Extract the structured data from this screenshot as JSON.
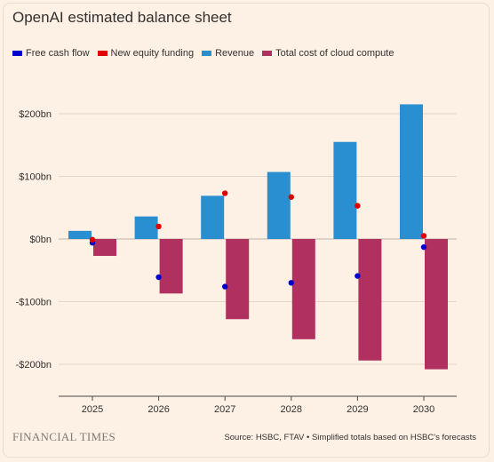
{
  "header": {
    "title": "OpenAI estimated balance sheet"
  },
  "footer": {
    "logo": "FINANCIAL TIMES",
    "source": "Source: HSBC, FTAV • Simplified totals based on HSBC's forecasts"
  },
  "chart_data": {
    "type": "bar",
    "title": "OpenAI estimated balance sheet",
    "categories": [
      "2025",
      "2026",
      "2027",
      "2028",
      "2029",
      "2030"
    ],
    "ylim": [
      -250,
      250
    ],
    "yticks": [
      200,
      100,
      0,
      -100,
      -200
    ],
    "ytick_labels": [
      "$200bn",
      "$100bn",
      "$0bn",
      "-$100bn",
      "-$200bn"
    ],
    "grid": true,
    "legend_position": "top-left",
    "series": [
      {
        "name": "Free cash flow",
        "kind": "dot",
        "color": "#0000cc",
        "values": [
          -6,
          -61,
          -76,
          -70,
          -59,
          -13
        ]
      },
      {
        "name": "New equity funding",
        "kind": "dot",
        "color": "#e00000",
        "values": [
          -1,
          20,
          73,
          67,
          53,
          5
        ]
      },
      {
        "name": "Revenue",
        "kind": "bar",
        "color": "#2a8fd1",
        "values": [
          13,
          36,
          69,
          107,
          155,
          215
        ]
      },
      {
        "name": "Total cost of cloud compute",
        "kind": "bar",
        "color": "#b03060",
        "values": [
          -27,
          -87,
          -128,
          -160,
          -194,
          -208
        ]
      }
    ]
  }
}
